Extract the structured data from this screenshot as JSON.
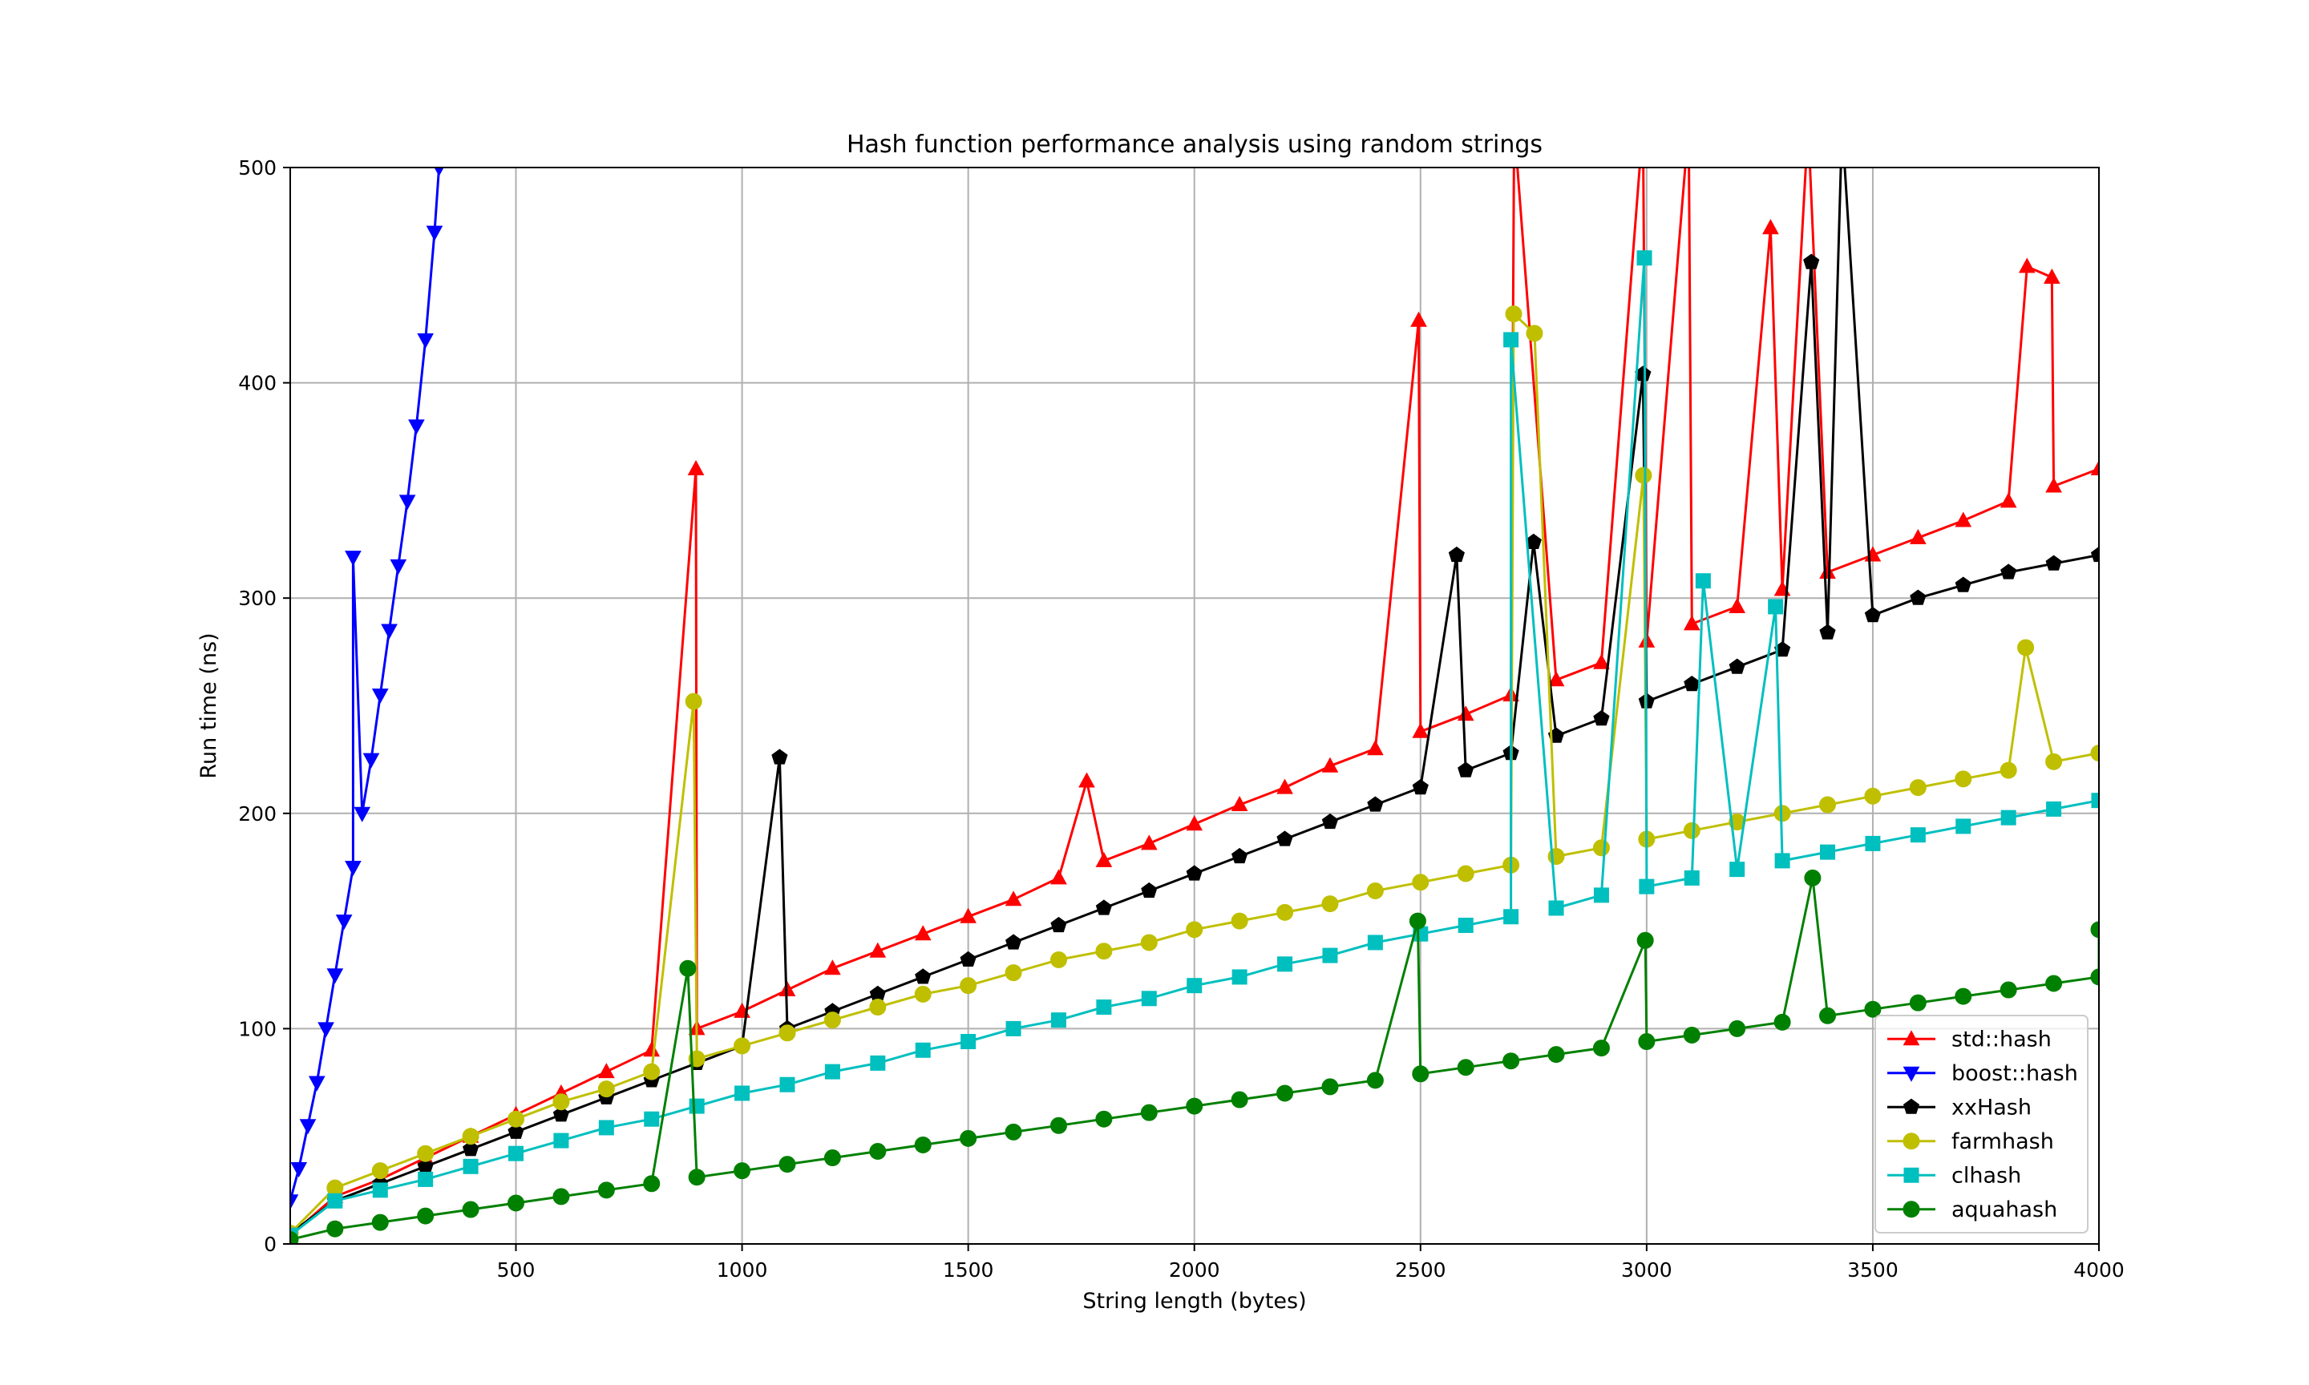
{
  "chart_data": {
    "type": "line",
    "title": "Hash function performance analysis using random strings",
    "xlabel": "String length (bytes)",
    "ylabel": "Run time (ns)",
    "xlim": [
      1,
      4000
    ],
    "ylim": [
      0,
      500
    ],
    "x_ticks": [
      500,
      1000,
      1500,
      2000,
      2500,
      3000,
      3500,
      4000
    ],
    "y_ticks": [
      0,
      100,
      200,
      300,
      400,
      500
    ],
    "x_tick_labels": [
      "500",
      "1000",
      "1500",
      "2000",
      "2500",
      "3000",
      "3500",
      "4000"
    ],
    "y_tick_labels": [
      "0",
      "100",
      "200",
      "300",
      "400",
      "500"
    ],
    "grid": true,
    "legend_position": "lower-right",
    "series": [
      {
        "name": "std::hash",
        "color": "#ff0000",
        "marker": "triangle-up",
        "x": [
          1,
          100,
          200,
          300,
          400,
          500,
          600,
          700,
          800,
          900,
          1000,
          1100,
          1200,
          1300,
          1400,
          1500,
          1600,
          1700,
          1800,
          1900,
          2000,
          2100,
          2200,
          2300,
          2400,
          2500,
          2600,
          2700,
          2800,
          2900,
          3000,
          3100,
          3200,
          3300,
          3400,
          3500,
          3600,
          3700,
          3800,
          3900,
          4000
        ],
        "values": [
          4,
          22,
          30,
          40,
          50,
          60,
          70,
          80,
          90,
          100,
          108,
          118,
          128,
          136,
          144,
          152,
          160,
          170,
          178,
          186,
          195,
          204,
          212,
          222,
          230,
          238,
          246,
          255,
          262,
          270,
          280,
          288,
          296,
          304,
          312,
          320,
          328,
          336,
          345,
          352,
          360
        ],
        "spikes": [
          [
            898,
            360
          ],
          [
            1762,
            215
          ],
          [
            2496,
            429
          ],
          [
            2707,
            520
          ],
          [
            2992,
            520
          ],
          [
            3093,
            520
          ],
          [
            3274,
            472
          ],
          [
            3357,
            520
          ],
          [
            3841,
            454
          ],
          [
            3896,
            449
          ]
        ]
      },
      {
        "name": "boost::hash",
        "color": "#0000ff",
        "marker": "triangle-down",
        "x": [
          1,
          20,
          40,
          60,
          80,
          100,
          120,
          140,
          160,
          180,
          200,
          220,
          240,
          260,
          280,
          300,
          320,
          330
        ],
        "values": [
          20,
          35,
          55,
          75,
          100,
          125,
          150,
          175,
          200,
          225,
          255,
          285,
          315,
          345,
          380,
          420,
          470,
          500
        ],
        "spikes": [
          [
            140,
            319
          ]
        ]
      },
      {
        "name": "xxHash",
        "color": "#000000",
        "marker": "pentagon",
        "x": [
          1,
          100,
          200,
          300,
          400,
          500,
          600,
          700,
          800,
          900,
          1000,
          1100,
          1200,
          1300,
          1400,
          1500,
          1600,
          1700,
          1800,
          1900,
          2000,
          2100,
          2200,
          2300,
          2400,
          2500,
          2600,
          2700,
          2800,
          2900,
          3000,
          3100,
          3200,
          3300,
          3400,
          3500,
          3600,
          3700,
          3800,
          3900,
          4000
        ],
        "values": [
          5,
          20,
          28,
          36,
          44,
          52,
          60,
          68,
          76,
          84,
          92,
          100,
          108,
          116,
          124,
          132,
          140,
          148,
          156,
          164,
          172,
          180,
          188,
          196,
          204,
          212,
          220,
          228,
          236,
          244,
          252,
          260,
          268,
          276,
          284,
          292,
          300,
          306,
          312,
          316,
          320
        ],
        "spikes": [
          [
            1083,
            226
          ],
          [
            2580,
            320
          ],
          [
            2750,
            326
          ],
          [
            2992,
            404
          ],
          [
            3364,
            456
          ],
          [
            3432,
            520
          ]
        ]
      },
      {
        "name": "farmhash",
        "color": "#bfbf00",
        "marker": "circle",
        "x": [
          1,
          100,
          200,
          300,
          400,
          500,
          600,
          700,
          800,
          900,
          1000,
          1100,
          1200,
          1300,
          1400,
          1500,
          1600,
          1700,
          1800,
          1900,
          2000,
          2100,
          2200,
          2300,
          2400,
          2500,
          2600,
          2700,
          2800,
          2900,
          3000,
          3100,
          3200,
          3300,
          3400,
          3500,
          3600,
          3700,
          3800,
          3900,
          4000
        ],
        "values": [
          5,
          26,
          34,
          42,
          50,
          58,
          66,
          72,
          80,
          86,
          92,
          98,
          104,
          110,
          116,
          120,
          126,
          132,
          136,
          140,
          146,
          150,
          154,
          158,
          164,
          168,
          172,
          176,
          180,
          184,
          188,
          192,
          196,
          200,
          204,
          208,
          212,
          216,
          220,
          224,
          228
        ],
        "spikes": [
          [
            893,
            252
          ],
          [
            2706,
            432
          ],
          [
            2752,
            423
          ],
          [
            2993,
            357
          ],
          [
            3838,
            277
          ]
        ]
      },
      {
        "name": "clhash",
        "color": "#00bfbf",
        "marker": "square",
        "x": [
          1,
          100,
          200,
          300,
          400,
          500,
          600,
          700,
          800,
          900,
          1000,
          1100,
          1200,
          1300,
          1400,
          1500,
          1600,
          1700,
          1800,
          1900,
          2000,
          2100,
          2200,
          2300,
          2400,
          2500,
          2600,
          2700,
          2800,
          2900,
          3000,
          3100,
          3200,
          3300,
          3400,
          3500,
          3600,
          3700,
          3800,
          3900,
          4000
        ],
        "values": [
          4,
          20,
          25,
          30,
          36,
          42,
          48,
          54,
          58,
          64,
          70,
          74,
          80,
          84,
          90,
          94,
          100,
          104,
          110,
          114,
          120,
          124,
          130,
          134,
          140,
          144,
          148,
          152,
          156,
          162,
          166,
          170,
          174,
          178,
          182,
          186,
          190,
          194,
          198,
          202,
          206
        ],
        "spikes": [
          [
            2700,
            420
          ],
          [
            2995,
            458
          ],
          [
            3125,
            308
          ],
          [
            3285,
            296
          ]
        ]
      },
      {
        "name": "aquahash",
        "color": "#008000",
        "marker": "circle",
        "x": [
          1,
          100,
          200,
          300,
          400,
          500,
          600,
          700,
          800,
          900,
          1000,
          1100,
          1200,
          1300,
          1400,
          1500,
          1600,
          1700,
          1800,
          1900,
          2000,
          2100,
          2200,
          2300,
          2400,
          2500,
          2600,
          2700,
          2800,
          2900,
          3000,
          3100,
          3200,
          3300,
          3400,
          3500,
          3600,
          3700,
          3800,
          3900,
          4000
        ],
        "values": [
          2,
          7,
          10,
          13,
          16,
          19,
          22,
          25,
          28,
          31,
          34,
          37,
          40,
          43,
          46,
          49,
          52,
          55,
          58,
          61,
          64,
          67,
          70,
          73,
          76,
          79,
          82,
          85,
          88,
          91,
          94,
          97,
          100,
          103,
          106,
          109,
          112,
          115,
          118,
          121,
          124
        ],
        "spikes": [
          [
            880,
            128
          ],
          [
            2494,
            150
          ],
          [
            2997,
            141
          ],
          [
            3367,
            170
          ],
          [
            4000,
            146
          ]
        ]
      }
    ]
  }
}
